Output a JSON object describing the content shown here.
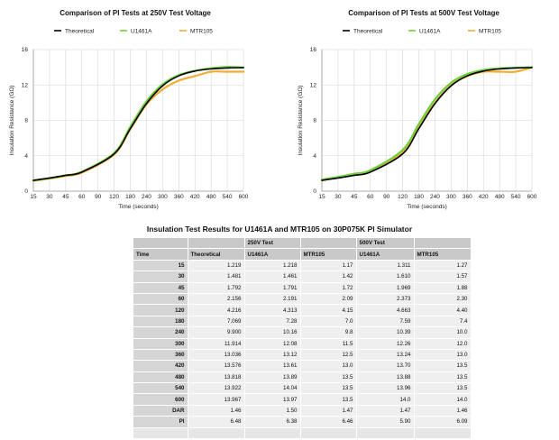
{
  "chart_data": [
    {
      "type": "line",
      "title": "Comparison of PI Tests at 250V Test Voltage",
      "xlabel": "Time (seconds)",
      "ylabel": "Insulation Resistance (GΩ)",
      "categories": [
        "15",
        "30",
        "45",
        "60",
        "120",
        "180",
        "240",
        "300",
        "360",
        "420",
        "480",
        "540",
        "600"
      ],
      "x": [
        15,
        30,
        45,
        60,
        120,
        180,
        240,
        300,
        360,
        420,
        480,
        540,
        600
      ],
      "x_tick_labels": [
        "15",
        "30",
        "45",
        "60",
        "90",
        "120",
        "180",
        "240",
        "300",
        "360",
        "420",
        "480",
        "540",
        "600"
      ],
      "x_tick_values": [
        15,
        30,
        45,
        60,
        90,
        120,
        180,
        240,
        300,
        360,
        420,
        480,
        540,
        600
      ],
      "ylim": [
        0,
        16
      ],
      "y_ticks": [
        0,
        4,
        8,
        12,
        16
      ],
      "grid": true,
      "legend_position": "top",
      "series": [
        {
          "name": "Theoretical",
          "color": "#000000",
          "values": [
            1.219,
            1.481,
            1.792,
            2.156,
            4.216,
            7.069,
            9.9,
            11.914,
            13.036,
            13.576,
            13.818,
            13.922,
            13.967
          ]
        },
        {
          "name": "U1461A",
          "color": "#6fd13e",
          "values": [
            1.218,
            1.461,
            1.791,
            2.191,
            4.313,
            7.28,
            10.16,
            12.08,
            13.12,
            13.61,
            13.89,
            14.04,
            13.97
          ]
        },
        {
          "name": "MTR105",
          "color": "#f2ac33",
          "values": [
            1.17,
            1.42,
            1.72,
            2.09,
            4.15,
            7.0,
            9.8,
            11.5,
            12.5,
            13.0,
            13.5,
            13.5,
            13.5
          ]
        }
      ]
    },
    {
      "type": "line",
      "title": "Comparison of PI Tests at 500V Test Voltage",
      "xlabel": "Time (seconds)",
      "ylabel": "Insulation Resistance (GΩ)",
      "categories": [
        "15",
        "30",
        "45",
        "60",
        "120",
        "180",
        "240",
        "300",
        "360",
        "420",
        "480",
        "540",
        "600"
      ],
      "x": [
        15,
        30,
        45,
        60,
        120,
        180,
        240,
        300,
        360,
        420,
        480,
        540,
        600
      ],
      "x_tick_labels": [
        "15",
        "30",
        "45",
        "60",
        "90",
        "120",
        "180",
        "240",
        "300",
        "360",
        "420",
        "480",
        "540",
        "600"
      ],
      "x_tick_values": [
        15,
        30,
        45,
        60,
        90,
        120,
        180,
        240,
        300,
        360,
        420,
        480,
        540,
        600
      ],
      "ylim": [
        0,
        16
      ],
      "y_ticks": [
        0,
        4,
        8,
        12,
        16
      ],
      "grid": true,
      "legend_position": "top",
      "series": [
        {
          "name": "Theoretical",
          "color": "#000000",
          "values": [
            1.219,
            1.481,
            1.792,
            2.156,
            4.216,
            7.069,
            9.9,
            11.914,
            13.036,
            13.576,
            13.818,
            13.922,
            13.967
          ]
        },
        {
          "name": "U1461A",
          "color": "#6fd13e",
          "values": [
            1.311,
            1.61,
            1.969,
            2.373,
            4.663,
            7.59,
            10.39,
            12.26,
            13.24,
            13.7,
            13.88,
            13.96,
            14.0
          ]
        },
        {
          "name": "MTR105",
          "color": "#f2ac33",
          "values": [
            1.27,
            1.57,
            1.88,
            2.3,
            4.4,
            7.4,
            10.0,
            12.0,
            13.0,
            13.5,
            13.5,
            13.5,
            14.0
          ]
        }
      ]
    }
  ],
  "table": {
    "title": "Insulation Test Results for U1461A and MTR105 on 30P075K PI Simulator",
    "group_headers": [
      "",
      "",
      "250V Test",
      "",
      "500V Test",
      ""
    ],
    "column_headers": [
      "Time",
      "Theoretical",
      "U1461A",
      "MTR105",
      "U1461A",
      "MTR105"
    ],
    "rows": [
      [
        "15",
        "1.219",
        "1.218",
        "1.17",
        "1.311",
        "1.27"
      ],
      [
        "30",
        "1.481",
        "1.461",
        "1.42",
        "1.610",
        "1.57"
      ],
      [
        "45",
        "1.792",
        "1.791",
        "1.72",
        "1.969",
        "1.88"
      ],
      [
        "60",
        "2.156",
        "2.191",
        "2.09",
        "2.373",
        "2.30"
      ],
      [
        "120",
        "4.216",
        "4.313",
        "4.15",
        "4.663",
        "4.40"
      ],
      [
        "180",
        "7.069",
        "7.28",
        "7.0",
        "7.59",
        "7.4"
      ],
      [
        "240",
        "9.900",
        "10.16",
        "9.8",
        "10.39",
        "10.0"
      ],
      [
        "300",
        "11.914",
        "12.08",
        "11.5",
        "12.26",
        "12.0"
      ],
      [
        "360",
        "13.036",
        "13.12",
        "12.5",
        "13.24",
        "13.0"
      ],
      [
        "420",
        "13.576",
        "13.61",
        "13.0",
        "13.70",
        "13.5"
      ],
      [
        "480",
        "13.818",
        "13.89",
        "13.5",
        "13.88",
        "13.5"
      ],
      [
        "540",
        "13.922",
        "14.04",
        "13.5",
        "13.96",
        "13.5"
      ],
      [
        "600",
        "13.967",
        "13.97",
        "13.5",
        "14.0",
        "14.0"
      ],
      [
        "DAR",
        "1.46",
        "1.50",
        "1.47",
        "1.47",
        "1.46"
      ],
      [
        "PI",
        "6.48",
        "6.38",
        "6.46",
        "5.90",
        "6.09"
      ]
    ]
  }
}
